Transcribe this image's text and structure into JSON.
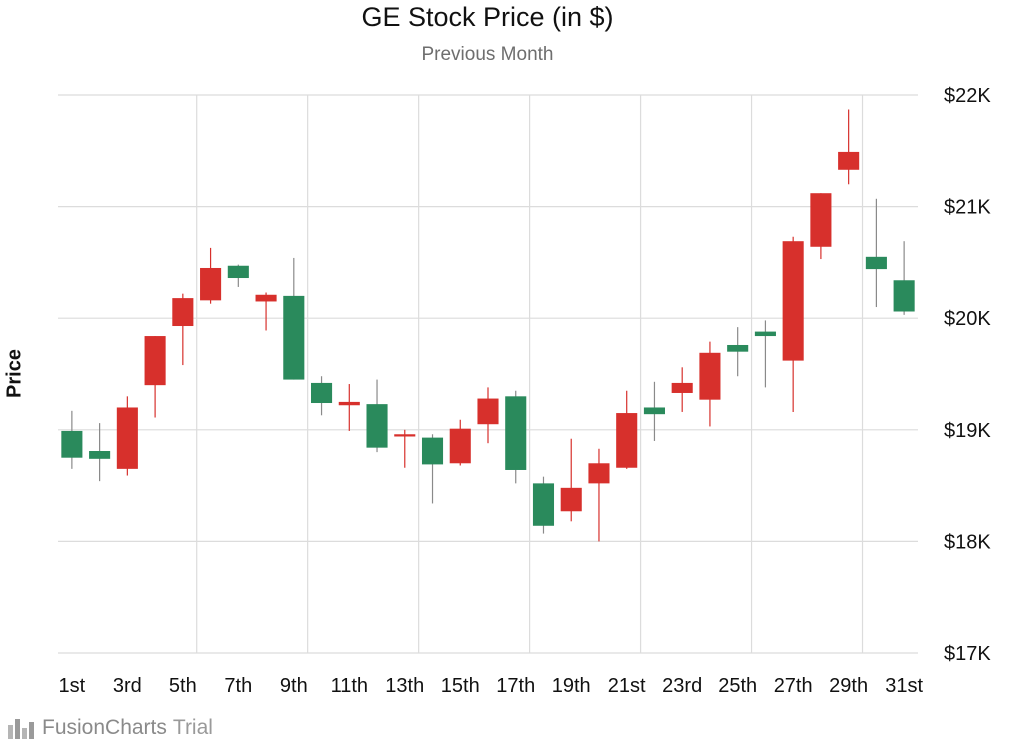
{
  "chart_data": {
    "type": "candlestick",
    "title": "GE Stock Price (in $)",
    "subtitle": "Previous Month",
    "xlabel": "",
    "ylabel": "Price",
    "ylim": [
      17000,
      22000
    ],
    "y_ticks": [
      {
        "value": 17000,
        "label": "$17K"
      },
      {
        "value": 18000,
        "label": "$18K"
      },
      {
        "value": 19000,
        "label": "$19K"
      },
      {
        "value": 20000,
        "label": "$20K"
      },
      {
        "value": 21000,
        "label": "$21K"
      },
      {
        "value": 22000,
        "label": "$22K"
      }
    ],
    "x_tick_labels": [
      "1st",
      "3rd",
      "5th",
      "7th",
      "9th",
      "11th",
      "13th",
      "15th",
      "17th",
      "19th",
      "21st",
      "23rd",
      "25th",
      "27th",
      "29th",
      "31st"
    ],
    "grid": true,
    "colors": {
      "up": "#2a8a5c",
      "down": "#d7302c",
      "wick": "#8a8a8a",
      "grid": "#dcdcdc"
    },
    "candles": [
      {
        "day": 1,
        "open": 18750,
        "high": 19170,
        "low": 18650,
        "close": 18990
      },
      {
        "day": 2,
        "open": 18740,
        "high": 19060,
        "low": 18540,
        "close": 18810
      },
      {
        "day": 3,
        "open": 19200,
        "high": 19300,
        "low": 18590,
        "close": 18650
      },
      {
        "day": 4,
        "open": 19840,
        "high": 19840,
        "low": 19110,
        "close": 19400
      },
      {
        "day": 5,
        "open": 20180,
        "high": 20220,
        "low": 19580,
        "close": 19930
      },
      {
        "day": 6,
        "open": 20450,
        "high": 20630,
        "low": 20130,
        "close": 20160
      },
      {
        "day": 7,
        "open": 20360,
        "high": 20480,
        "low": 20280,
        "close": 20470
      },
      {
        "day": 8,
        "open": 20210,
        "high": 20230,
        "low": 19890,
        "close": 20150
      },
      {
        "day": 9,
        "open": 19450,
        "high": 20540,
        "low": 19450,
        "close": 20200
      },
      {
        "day": 10,
        "open": 19240,
        "high": 19480,
        "low": 19130,
        "close": 19420
      },
      {
        "day": 11,
        "open": 19250,
        "high": 19410,
        "low": 18990,
        "close": 19220
      },
      {
        "day": 12,
        "open": 18840,
        "high": 19450,
        "low": 18800,
        "close": 19230
      },
      {
        "day": 13,
        "open": 18960,
        "high": 19000,
        "low": 18660,
        "close": 18940
      },
      {
        "day": 14,
        "open": 18690,
        "high": 18960,
        "low": 18340,
        "close": 18930
      },
      {
        "day": 15,
        "open": 19010,
        "high": 19090,
        "low": 18680,
        "close": 18700
      },
      {
        "day": 16,
        "open": 19280,
        "high": 19380,
        "low": 18880,
        "close": 19050
      },
      {
        "day": 17,
        "open": 18640,
        "high": 19350,
        "low": 18520,
        "close": 19300
      },
      {
        "day": 18,
        "open": 18140,
        "high": 18580,
        "low": 18070,
        "close": 18520
      },
      {
        "day": 19,
        "open": 18480,
        "high": 18920,
        "low": 18180,
        "close": 18270
      },
      {
        "day": 20,
        "open": 18700,
        "high": 18830,
        "low": 18000,
        "close": 18520
      },
      {
        "day": 21,
        "open": 19150,
        "high": 19350,
        "low": 18650,
        "close": 18660
      },
      {
        "day": 22,
        "open": 19140,
        "high": 19430,
        "low": 18900,
        "close": 19200
      },
      {
        "day": 23,
        "open": 19420,
        "high": 19560,
        "low": 19160,
        "close": 19330
      },
      {
        "day": 24,
        "open": 19690,
        "high": 19790,
        "low": 19030,
        "close": 19270
      },
      {
        "day": 25,
        "open": 19700,
        "high": 19920,
        "low": 19480,
        "close": 19760
      },
      {
        "day": 26,
        "open": 19840,
        "high": 19980,
        "low": 19380,
        "close": 19880
      },
      {
        "day": 27,
        "open": 20690,
        "high": 20730,
        "low": 19160,
        "close": 19620
      },
      {
        "day": 28,
        "open": 21120,
        "high": 21120,
        "low": 20530,
        "close": 20640
      },
      {
        "day": 29,
        "open": 21490,
        "high": 21870,
        "low": 21200,
        "close": 21330
      },
      {
        "day": 30,
        "open": 20440,
        "high": 21070,
        "low": 20100,
        "close": 20550
      },
      {
        "day": 31,
        "open": 20060,
        "high": 20690,
        "low": 20030,
        "close": 20340
      }
    ]
  },
  "watermark": {
    "icon": "fusioncharts-logo-icon",
    "brand": "FusionCharts",
    "suffix": "Trial"
  }
}
